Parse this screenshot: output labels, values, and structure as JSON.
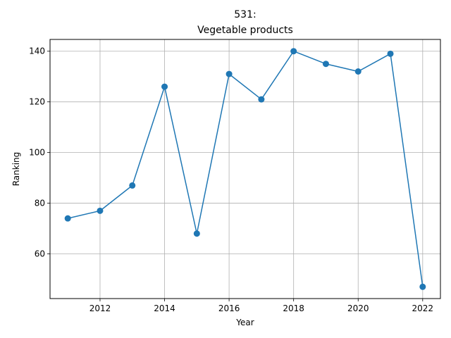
{
  "chart_data": {
    "type": "line",
    "title": "531:",
    "subtitle": "Vegetable products",
    "xlabel": "Year",
    "ylabel": "Ranking",
    "xlim": [
      2010.45,
      2022.55
    ],
    "ylim": [
      42.35,
      144.65
    ],
    "xticks": [
      2012,
      2014,
      2016,
      2018,
      2020,
      2022
    ],
    "yticks": [
      60,
      80,
      100,
      120,
      140
    ],
    "grid": true,
    "series": [
      {
        "color": "#1f77b4",
        "marker": "circle",
        "x": [
          2011,
          2012,
          2013,
          2014,
          2015,
          2016,
          2017,
          2018,
          2019,
          2020,
          2021,
          2022
        ],
        "values": [
          74,
          77,
          87,
          126,
          68,
          131,
          121,
          140,
          135,
          132,
          139,
          47
        ]
      }
    ]
  }
}
